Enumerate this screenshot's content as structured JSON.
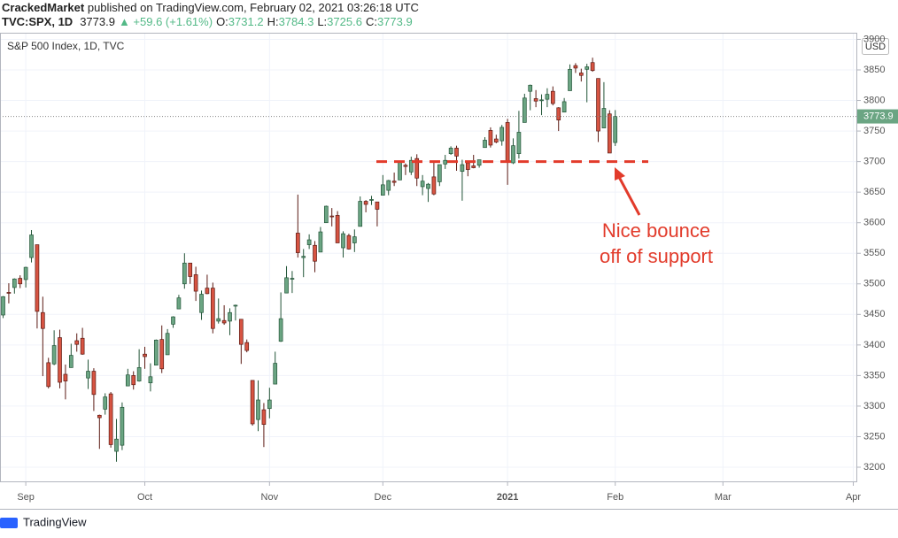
{
  "header": {
    "publisher": "CrackedMarket",
    "published": "published on TradingView.com, February 02, 2021 03:26:18 UTC",
    "symbol": "TVC:SPX, 1D",
    "change": "▲ +59.6 (+1.61%)",
    "o": "O:",
    "h": "H:",
    "l": "L:",
    "c": "C:"
  },
  "chart_data": {
    "type": "candlestick",
    "legend": "S&P 500 Index, 1D, TVC",
    "currency": "USD",
    "up_color": "#6ba583",
    "down_color": "#d75442",
    "ohlc": [
      [
        3449,
        3480,
        3444,
        3479
      ],
      [
        3486,
        3501,
        3468,
        3485
      ],
      [
        3494,
        3509,
        3484,
        3508
      ],
      [
        3509,
        3514,
        3493,
        3500
      ],
      [
        3507,
        3528,
        3494,
        3527
      ],
      [
        3543,
        3588,
        3535,
        3580
      ],
      [
        3564,
        3564,
        3427,
        3455
      ],
      [
        3453,
        3479,
        3349,
        3427
      ],
      [
        3371,
        3379,
        3329,
        3332
      ],
      [
        3369,
        3424,
        3367,
        3399
      ],
      [
        3412,
        3425,
        3329,
        3339
      ],
      [
        3352,
        3368,
        3311,
        3341
      ],
      [
        3363,
        3402,
        3363,
        3383
      ],
      [
        3407,
        3419,
        3389,
        3401
      ],
      [
        3411,
        3428,
        3384,
        3385
      ],
      [
        3346,
        3376,
        3328,
        3357
      ],
      [
        3357,
        3362,
        3292,
        3319
      ],
      [
        3285,
        3286,
        3230,
        3281
      ],
      [
        3295,
        3321,
        3286,
        3315
      ],
      [
        3320,
        3323,
        3232,
        3237
      ],
      [
        3226,
        3279,
        3209,
        3246
      ],
      [
        3236,
        3306,
        3228,
        3298
      ],
      [
        3333,
        3361,
        3333,
        3351
      ],
      [
        3350,
        3357,
        3327,
        3335
      ],
      [
        3341,
        3393,
        3340,
        3363
      ],
      [
        3385,
        3397,
        3361,
        3381
      ],
      [
        3338,
        3370,
        3324,
        3348
      ],
      [
        3367,
        3409,
        3367,
        3408
      ],
      [
        3409,
        3432,
        3354,
        3361
      ],
      [
        3384,
        3426,
        3384,
        3419
      ],
      [
        3434,
        3447,
        3428,
        3446
      ],
      [
        3459,
        3482,
        3459,
        3477
      ],
      [
        3500,
        3550,
        3492,
        3534
      ],
      [
        3534,
        3534,
        3500,
        3512
      ],
      [
        3515,
        3528,
        3472,
        3488
      ],
      [
        3453,
        3489,
        3441,
        3483
      ],
      [
        3493,
        3515,
        3483,
        3484
      ],
      [
        3493,
        3502,
        3419,
        3427
      ],
      [
        3439,
        3476,
        3435,
        3443
      ],
      [
        3440,
        3465,
        3433,
        3436
      ],
      [
        3439,
        3460,
        3416,
        3453
      ],
      [
        3464,
        3466,
        3440,
        3465
      ],
      [
        3442,
        3442,
        3369,
        3401
      ],
      [
        3404,
        3409,
        3388,
        3391
      ],
      [
        3342,
        3342,
        3268,
        3271
      ],
      [
        3278,
        3342,
        3259,
        3310
      ],
      [
        3294,
        3305,
        3233,
        3270
      ],
      [
        3296,
        3330,
        3280,
        3310
      ],
      [
        3336,
        3389,
        3336,
        3370
      ],
      [
        3406,
        3486,
        3405,
        3443
      ],
      [
        3485,
        3529,
        3485,
        3510
      ],
      [
        3509,
        3521,
        3485,
        3509
      ],
      [
        3583,
        3646,
        3543,
        3551
      ],
      [
        3543,
        3557,
        3511,
        3545
      ],
      [
        3564,
        3581,
        3557,
        3572
      ],
      [
        3563,
        3570,
        3519,
        3537
      ],
      [
        3552,
        3593,
        3552,
        3585
      ],
      [
        3600,
        3628,
        3600,
        3627
      ],
      [
        3611,
        3624,
        3594,
        3610
      ],
      [
        3612,
        3619,
        3567,
        3567
      ],
      [
        3559,
        3586,
        3543,
        3582
      ],
      [
        3579,
        3582,
        3556,
        3557
      ],
      [
        3567,
        3589,
        3552,
        3577
      ],
      [
        3594,
        3643,
        3594,
        3635
      ],
      [
        3635,
        3637,
        3617,
        3630
      ],
      [
        3638,
        3644,
        3629,
        3638
      ],
      [
        3634,
        3634,
        3594,
        3622
      ],
      [
        3645,
        3678,
        3645,
        3662
      ],
      [
        3653,
        3670,
        3645,
        3669
      ],
      [
        3668,
        3682,
        3660,
        3666
      ],
      [
        3670,
        3699,
        3670,
        3699
      ],
      [
        3694,
        3697,
        3678,
        3692
      ],
      [
        3683,
        3708,
        3678,
        3702
      ],
      [
        3705,
        3712,
        3660,
        3673
      ],
      [
        3659,
        3678,
        3645,
        3668
      ],
      [
        3656,
        3665,
        3634,
        3663
      ],
      [
        3675,
        3698,
        3645,
        3647
      ],
      [
        3667,
        3695,
        3660,
        3695
      ],
      [
        3696,
        3711,
        3688,
        3702
      ],
      [
        3713,
        3725,
        3711,
        3722
      ],
      [
        3722,
        3726,
        3685,
        3709
      ],
      [
        3684,
        3703,
        3636,
        3695
      ],
      [
        3698,
        3698,
        3676,
        3687
      ],
      [
        3693,
        3711,
        3689,
        3690
      ],
      [
        3694,
        3703,
        3690,
        3703
      ],
      [
        3723,
        3740,
        3723,
        3735
      ],
      [
        3751,
        3756,
        3723,
        3727
      ],
      [
        3737,
        3744,
        3730,
        3732
      ],
      [
        3734,
        3760,
        3726,
        3756
      ],
      [
        3764,
        3770,
        3662,
        3701
      ],
      [
        3698,
        3738,
        3696,
        3726
      ],
      [
        3713,
        3783,
        3705,
        3748
      ],
      [
        3764,
        3811,
        3764,
        3804
      ],
      [
        3815,
        3826,
        3784,
        3825
      ],
      [
        3803,
        3817,
        3789,
        3799
      ],
      [
        3801,
        3810,
        3776,
        3801
      ],
      [
        3802,
        3820,
        3789,
        3810
      ],
      [
        3815,
        3823,
        3792,
        3795
      ],
      [
        3788,
        3789,
        3750,
        3768
      ],
      [
        3781,
        3804,
        3781,
        3798
      ],
      [
        3816,
        3859,
        3816,
        3851
      ],
      [
        3857,
        3861,
        3845,
        3853
      ],
      [
        3845,
        3852,
        3831,
        3841
      ],
      [
        3851,
        3860,
        3797,
        3855
      ],
      [
        3862,
        3870,
        3847,
        3849
      ],
      [
        3836,
        3836,
        3732,
        3750
      ],
      [
        3755,
        3830,
        3755,
        3787
      ],
      [
        3778,
        3784,
        3715,
        3714
      ],
      [
        3731.2,
        3784.3,
        3725.6,
        3773.9
      ]
    ],
    "xlim": [
      -0.55,
      150.7
    ],
    "xticks": [
      {
        "value": 4,
        "label": "Sep"
      },
      {
        "value": 25,
        "label": "Oct"
      },
      {
        "value": 47,
        "label": "Nov"
      },
      {
        "value": 67,
        "label": "Dec"
      },
      {
        "value": 89,
        "label": "2021"
      },
      {
        "value": 108,
        "label": "Feb"
      },
      {
        "value": 127,
        "label": "Mar"
      },
      {
        "value": 150,
        "label": "Apr"
      }
    ],
    "ylim": [
      3175.4,
      3910.8
    ],
    "yticks": [
      3200,
      3250,
      3300,
      3350,
      3400,
      3450,
      3500,
      3550,
      3600,
      3650,
      3700,
      3750,
      3800,
      3850,
      3900
    ],
    "grid": true,
    "support": 3700,
    "annotation": [
      "Nice bounce",
      "off of support"
    ]
  },
  "footer": "TradingView"
}
